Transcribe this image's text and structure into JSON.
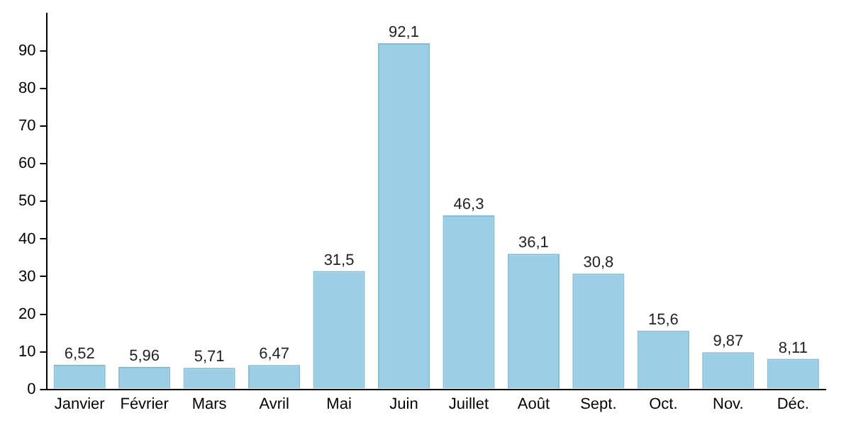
{
  "chart_data": {
    "type": "bar",
    "categories": [
      "Janvier",
      "Février",
      "Mars",
      "Avril",
      "Mai",
      "Juin",
      "Juillet",
      "Août",
      "Sept.",
      "Oct.",
      "Nov.",
      "Déc."
    ],
    "values": [
      6.52,
      5.96,
      5.71,
      6.47,
      31.5,
      92.1,
      46.3,
      36.1,
      30.8,
      15.6,
      9.87,
      8.11
    ],
    "value_labels": [
      "6,52",
      "5,96",
      "5,71",
      "6,47",
      "31,5",
      "92,1",
      "46,3",
      "36,1",
      "30,8",
      "15,6",
      "9,87",
      "8,11"
    ],
    "color": "#9ccfe6",
    "ylim": [
      0,
      100
    ],
    "yticks": [
      0,
      10,
      20,
      30,
      40,
      50,
      60,
      70,
      80,
      90
    ],
    "grid": false,
    "legend": false
  }
}
